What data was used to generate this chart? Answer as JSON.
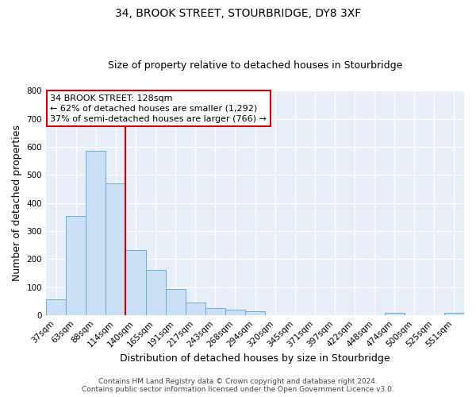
{
  "title": "34, BROOK STREET, STOURBRIDGE, DY8 3XF",
  "subtitle": "Size of property relative to detached houses in Stourbridge",
  "xlabel": "Distribution of detached houses by size in Stourbridge",
  "ylabel": "Number of detached properties",
  "bin_labels": [
    "37sqm",
    "63sqm",
    "88sqm",
    "114sqm",
    "140sqm",
    "165sqm",
    "191sqm",
    "217sqm",
    "243sqm",
    "268sqm",
    "294sqm",
    "320sqm",
    "345sqm",
    "371sqm",
    "397sqm",
    "422sqm",
    "448sqm",
    "474sqm",
    "500sqm",
    "525sqm",
    "551sqm"
  ],
  "bar_values": [
    57,
    355,
    587,
    470,
    233,
    163,
    95,
    47,
    25,
    20,
    15,
    0,
    0,
    0,
    0,
    0,
    0,
    8,
    0,
    0,
    8
  ],
  "bar_color": "#cce0f5",
  "bar_edge_color": "#6aaed6",
  "vline_position": 3.5,
  "vline_color": "#cc0000",
  "annotation_text_line1": "34 BROOK STREET: 128sqm",
  "annotation_text_line2": "← 62% of detached houses are smaller (1,292)",
  "annotation_text_line3": "37% of semi-detached houses are larger (766) →",
  "ylim": [
    0,
    800
  ],
  "yticks": [
    0,
    100,
    200,
    300,
    400,
    500,
    600,
    700,
    800
  ],
  "bg_color": "#ffffff",
  "plot_bg_color": "#e8eef8",
  "grid_color": "#ffffff",
  "title_fontsize": 10,
  "subtitle_fontsize": 9,
  "axis_label_fontsize": 9,
  "tick_fontsize": 7.5,
  "annotation_fontsize": 8,
  "footer_fontsize": 6.5,
  "footer_line1": "Contains HM Land Registry data © Crown copyright and database right 2024.",
  "footer_line2": "Contains public sector information licensed under the Open Government Licence v3.0."
}
